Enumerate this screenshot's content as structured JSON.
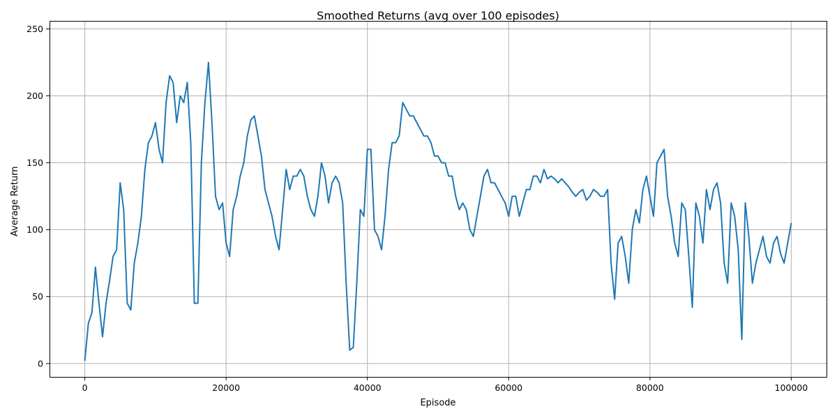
{
  "chart_data": {
    "type": "line",
    "title": "Smoothed Returns (avg over 100 episodes)",
    "xlabel": "Episode",
    "ylabel": "Average Return",
    "xlim": [
      -5000,
      105000
    ],
    "ylim": [
      -10,
      256
    ],
    "xticks": [
      0,
      20000,
      40000,
      60000,
      80000,
      100000
    ],
    "xtick_labels": [
      "0",
      "20000",
      "40000",
      "60000",
      "80000",
      "100000"
    ],
    "yticks": [
      0,
      50,
      100,
      150,
      200,
      250
    ],
    "ytick_labels": [
      "0",
      "50",
      "100",
      "150",
      "200",
      "250"
    ],
    "grid": true,
    "line_color": "#1f77b4",
    "series": [
      {
        "x": [
          0,
          500,
          1000,
          1500,
          2000,
          2500,
          3000,
          3500,
          4000,
          4500,
          5000,
          5500,
          6000,
          6500,
          7000,
          7500,
          8000,
          8500,
          9000,
          9500,
          10000,
          10500,
          11000,
          11500,
          12000,
          12500,
          13000,
          13500,
          14000,
          14500,
          15000,
          15500,
          16000,
          16500,
          17000,
          17500,
          18000,
          18500,
          19000,
          19500,
          20000,
          20500,
          21000,
          21500,
          22000,
          22500,
          23000,
          23500,
          24000,
          24500,
          25000,
          25500,
          26000,
          26500,
          27000,
          27500,
          28000,
          28500,
          29000,
          29500,
          30000,
          30500,
          31000,
          31500,
          32000,
          32500,
          33000,
          33500,
          34000,
          34500,
          35000,
          35500,
          36000,
          36500,
          37000,
          37500,
          38000,
          38500,
          39000,
          39500,
          40000,
          40500,
          41000,
          41500,
          42000,
          42500,
          43000,
          43500,
          44000,
          44500,
          45000,
          45500,
          46000,
          46500,
          47000,
          47500,
          48000,
          48500,
          49000,
          49500,
          50000,
          50500,
          51000,
          51500,
          52000,
          52500,
          53000,
          53500,
          54000,
          54500,
          55000,
          55500,
          56000,
          56500,
          57000,
          57500,
          58000,
          58500,
          59000,
          59500,
          60000,
          60500,
          61000,
          61500,
          62000,
          62500,
          63000,
          63500,
          64000,
          64500,
          65000,
          65500,
          66000,
          66500,
          67000,
          67500,
          68000,
          68500,
          69000,
          69500,
          70000,
          70500,
          71000,
          71500,
          72000,
          72500,
          73000,
          73500,
          74000,
          74500,
          75000,
          75500,
          76000,
          76500,
          77000,
          77500,
          78000,
          78500,
          79000,
          79500,
          80000,
          80500,
          81000,
          81500,
          82000,
          82500,
          83000,
          83500,
          84000,
          84500,
          85000,
          85500,
          86000,
          86500,
          87000,
          87500,
          88000,
          88500,
          89000,
          89500,
          90000,
          90500,
          91000,
          91500,
          92000,
          92500,
          93000,
          93500,
          94000,
          94500,
          95000,
          95500,
          96000,
          96500,
          97000,
          97500,
          98000,
          98500,
          99000,
          99500,
          100000
        ],
        "y": [
          2,
          30,
          38,
          72,
          45,
          20,
          45,
          62,
          80,
          85,
          135,
          115,
          45,
          40,
          75,
          90,
          110,
          145,
          165,
          170,
          180,
          160,
          150,
          195,
          215,
          210,
          180,
          200,
          195,
          210,
          165,
          45,
          45,
          150,
          195,
          225,
          180,
          125,
          115,
          120,
          90,
          80,
          115,
          125,
          140,
          150,
          170,
          182,
          185,
          170,
          155,
          130,
          120,
          110,
          95,
          85,
          115,
          145,
          130,
          140,
          140,
          145,
          140,
          125,
          115,
          110,
          125,
          150,
          140,
          120,
          135,
          140,
          135,
          120,
          60,
          10,
          12,
          60,
          115,
          110,
          160,
          160,
          100,
          95,
          85,
          110,
          145,
          165,
          165,
          170,
          195,
          190,
          185,
          185,
          180,
          175,
          170,
          170,
          165,
          155,
          155,
          150,
          150,
          140,
          140,
          125,
          115,
          120,
          115,
          100,
          95,
          110,
          125,
          140,
          145,
          135,
          135,
          130,
          125,
          120,
          110,
          125,
          125,
          110,
          120,
          130,
          130,
          140,
          140,
          135,
          145,
          138,
          140,
          138,
          135,
          138,
          135,
          132,
          128,
          125,
          128,
          130,
          122,
          125,
          130,
          128,
          125,
          125,
          130,
          75,
          48,
          90,
          95,
          80,
          60,
          100,
          115,
          105,
          130,
          140,
          125,
          110,
          150,
          155,
          160,
          125,
          110,
          90,
          80,
          120,
          115,
          80,
          42,
          120,
          110,
          90,
          130,
          115,
          130,
          135,
          120,
          75,
          60,
          120,
          110,
          85,
          18,
          120,
          95,
          60,
          75,
          85,
          95,
          80,
          75,
          90,
          95,
          82,
          75,
          90,
          105
        ]
      }
    ]
  }
}
